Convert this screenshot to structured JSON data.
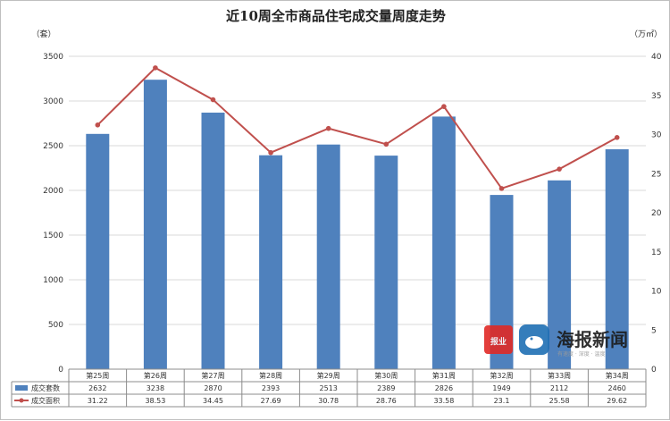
{
  "chart_data": {
    "type": "bar",
    "title": "近10周全市商品住宅成交量周度走势",
    "categories": [
      "第25周",
      "第26周",
      "第27周",
      "第28周",
      "第29周",
      "第30周",
      "第31周",
      "第32周",
      "第33周",
      "第34周"
    ],
    "series": [
      {
        "name": "成交套数",
        "type": "bar",
        "axis": "left",
        "color": "#4f81bd",
        "values": [
          2632,
          3238,
          2870,
          2393,
          2513,
          2389,
          2826,
          1949,
          2112,
          2460
        ]
      },
      {
        "name": "成交面积",
        "type": "line",
        "axis": "right",
        "color": "#c0504d",
        "values": [
          31.22,
          38.53,
          34.45,
          27.69,
          30.78,
          28.76,
          33.58,
          23.1,
          25.58,
          29.62
        ]
      }
    ],
    "value_labels": [
      [
        "2632",
        "3238",
        "2870",
        "2393",
        "2513",
        "2389",
        "2826",
        "1949",
        "2112",
        "2460"
      ],
      [
        "31.22",
        "38.53",
        "34.45",
        "27.69",
        "30.78",
        "28.76",
        "33.58",
        "23.1",
        "25.58",
        "29.62"
      ]
    ],
    "y_left": {
      "unit": "（套）",
      "min": 0,
      "max": 3500,
      "step": 500
    },
    "y_right": {
      "unit": "（万㎡）",
      "min": 0,
      "max": 40,
      "step": 5
    },
    "grid": true,
    "legend": "data-table"
  },
  "watermark": {
    "brand": "海报新闻",
    "slogan": "有速度 · 深度 · 温度",
    "badge": "大众报业"
  }
}
